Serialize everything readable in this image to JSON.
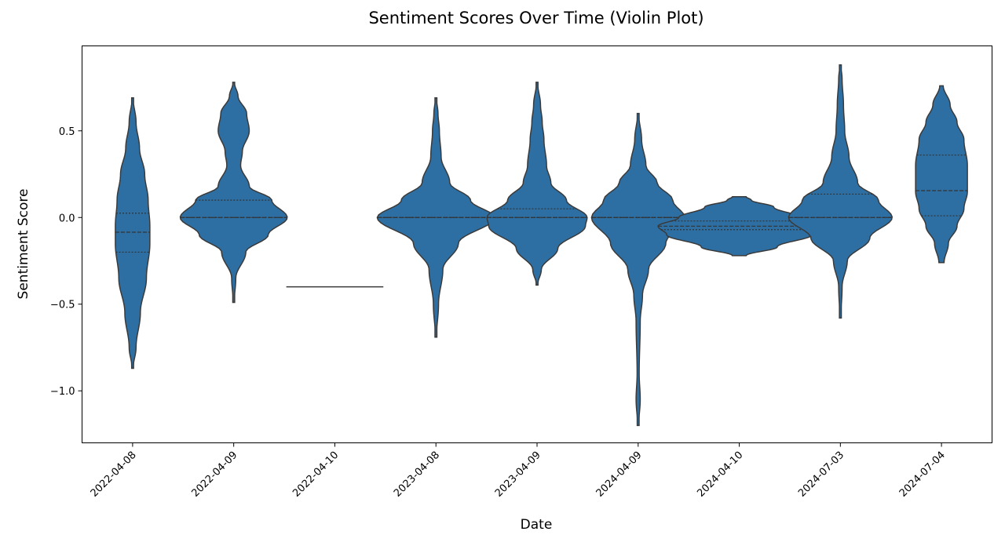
{
  "chart_data": {
    "type": "violin",
    "title": "Sentiment Scores Over Time (Violin Plot)",
    "xlabel": "Date",
    "ylabel": "Sentiment Score",
    "ylim": [
      -1.3,
      0.99
    ],
    "yticks": [
      -1.0,
      -0.5,
      0.0,
      0.5
    ],
    "ytick_labels": [
      "−1.0",
      "−0.5",
      "0.0",
      "0.5"
    ],
    "grid": false,
    "fill_color": "#2e6fa3",
    "edge_color": "#3a3a3a",
    "categories": [
      "2022-04-08",
      "2022-04-09",
      "2022-04-10",
      "2023-04-08",
      "2023-04-09",
      "2024-04-09",
      "2024-04-10",
      "2024-07-03",
      "2024-07-04"
    ],
    "violins": [
      {
        "category": "2022-04-08",
        "min": -0.87,
        "max": 0.69,
        "q1": -0.2,
        "median": -0.085,
        "q3": 0.025,
        "density": [
          [
            -0.87,
            0.003
          ],
          [
            -0.75,
            0.02
          ],
          [
            -0.55,
            0.045
          ],
          [
            -0.35,
            0.08
          ],
          [
            -0.15,
            0.1
          ],
          [
            -0.05,
            0.1
          ],
          [
            0.1,
            0.09
          ],
          [
            0.25,
            0.07
          ],
          [
            0.4,
            0.04
          ],
          [
            0.55,
            0.02
          ],
          [
            0.69,
            0.003
          ]
        ]
      },
      {
        "category": "2022-04-09",
        "min": -0.49,
        "max": 0.78,
        "q1": 0.0,
        "median": 0.0,
        "q3": 0.1,
        "density": [
          [
            -0.49,
            0.003
          ],
          [
            -0.35,
            0.012
          ],
          [
            -0.2,
            0.07
          ],
          [
            -0.1,
            0.2
          ],
          [
            0.0,
            0.31
          ],
          [
            0.1,
            0.22
          ],
          [
            0.18,
            0.09
          ],
          [
            0.3,
            0.04
          ],
          [
            0.38,
            0.05
          ],
          [
            0.5,
            0.09
          ],
          [
            0.6,
            0.075
          ],
          [
            0.7,
            0.025
          ],
          [
            0.78,
            0.003
          ]
        ]
      },
      {
        "category": "2022-04-10",
        "min": -0.4,
        "max": -0.4,
        "single_value": -0.4,
        "line_halfwidth": 0.48
      },
      {
        "category": "2023-04-08",
        "min": -0.69,
        "max": 0.69,
        "q1": 0.0,
        "median": 0.0,
        "q3": 0.0,
        "density": [
          [
            -0.69,
            0.003
          ],
          [
            -0.5,
            0.015
          ],
          [
            -0.3,
            0.04
          ],
          [
            -0.15,
            0.13
          ],
          [
            0.0,
            0.34
          ],
          [
            0.1,
            0.2
          ],
          [
            0.2,
            0.08
          ],
          [
            0.35,
            0.03
          ],
          [
            0.5,
            0.02
          ],
          [
            0.6,
            0.012
          ],
          [
            0.69,
            0.003
          ]
        ]
      },
      {
        "category": "2023-04-09",
        "min": -0.39,
        "max": 0.78,
        "q1": 0.0,
        "median": 0.0,
        "q3": 0.05,
        "density": [
          [
            -0.39,
            0.003
          ],
          [
            -0.3,
            0.025
          ],
          [
            -0.18,
            0.12
          ],
          [
            -0.05,
            0.28
          ],
          [
            0.0,
            0.29
          ],
          [
            0.1,
            0.17
          ],
          [
            0.2,
            0.08
          ],
          [
            0.3,
            0.055
          ],
          [
            0.45,
            0.04
          ],
          [
            0.55,
            0.03
          ],
          [
            0.65,
            0.02
          ],
          [
            0.78,
            0.003
          ]
        ]
      },
      {
        "category": "2024-04-09",
        "min": -1.2,
        "max": 0.6,
        "q1": 0.0,
        "median": 0.0,
        "q3": 0.0,
        "density": [
          [
            -1.2,
            0.003
          ],
          [
            -1.05,
            0.012
          ],
          [
            -0.9,
            0.006
          ],
          [
            -0.6,
            0.012
          ],
          [
            -0.45,
            0.025
          ],
          [
            -0.3,
            0.06
          ],
          [
            -0.15,
            0.16
          ],
          [
            0.0,
            0.27
          ],
          [
            0.1,
            0.2
          ],
          [
            0.2,
            0.11
          ],
          [
            0.3,
            0.045
          ],
          [
            0.45,
            0.02
          ],
          [
            0.6,
            0.003
          ]
        ]
      },
      {
        "category": "2024-04-10",
        "min": -0.22,
        "max": 0.12,
        "q1": -0.07,
        "median": -0.05,
        "q3": -0.02,
        "density": [
          [
            -0.22,
            0.04
          ],
          [
            -0.17,
            0.22
          ],
          [
            -0.1,
            0.42
          ],
          [
            -0.05,
            0.47
          ],
          [
            0.0,
            0.35
          ],
          [
            0.06,
            0.2
          ],
          [
            0.1,
            0.07
          ],
          [
            0.12,
            0.04
          ]
        ]
      },
      {
        "category": "2024-07-03",
        "min": -0.58,
        "max": 0.88,
        "q1": 0.0,
        "median": 0.0,
        "q3": 0.135,
        "density": [
          [
            -0.58,
            0.003
          ],
          [
            -0.4,
            0.01
          ],
          [
            -0.25,
            0.04
          ],
          [
            -0.12,
            0.17
          ],
          [
            0.0,
            0.3
          ],
          [
            0.1,
            0.22
          ],
          [
            0.2,
            0.1
          ],
          [
            0.35,
            0.05
          ],
          [
            0.5,
            0.025
          ],
          [
            0.65,
            0.018
          ],
          [
            0.8,
            0.01
          ],
          [
            0.88,
            0.003
          ]
        ]
      },
      {
        "category": "2024-07-04",
        "min": -0.26,
        "max": 0.76,
        "q1": 0.01,
        "median": 0.155,
        "q3": 0.36,
        "density": [
          [
            -0.26,
            0.015
          ],
          [
            -0.15,
            0.04
          ],
          [
            -0.05,
            0.09
          ],
          [
            0.05,
            0.13
          ],
          [
            0.15,
            0.15
          ],
          [
            0.3,
            0.15
          ],
          [
            0.45,
            0.13
          ],
          [
            0.55,
            0.09
          ],
          [
            0.65,
            0.05
          ],
          [
            0.76,
            0.01
          ]
        ]
      }
    ]
  }
}
